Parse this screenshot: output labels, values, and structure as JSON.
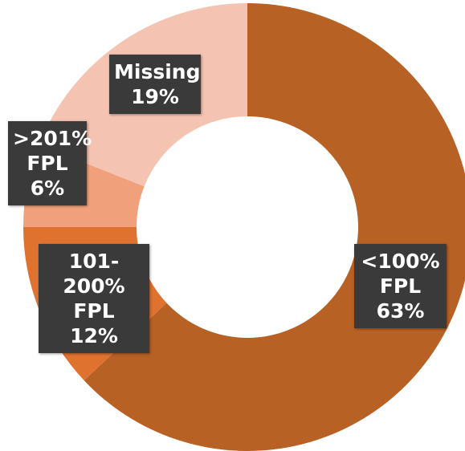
{
  "chart_data": {
    "type": "donut",
    "categories": [
      "<100% FPL",
      "101-200% FPL",
      ">201% FPL",
      "Missing"
    ],
    "values": [
      63,
      12,
      6,
      19
    ],
    "value_labels": [
      "63%",
      "12%",
      "6%",
      "19%"
    ],
    "colors": [
      "#b86125",
      "#e07230",
      "#f0a17b",
      "#f5c3b1"
    ]
  }
}
